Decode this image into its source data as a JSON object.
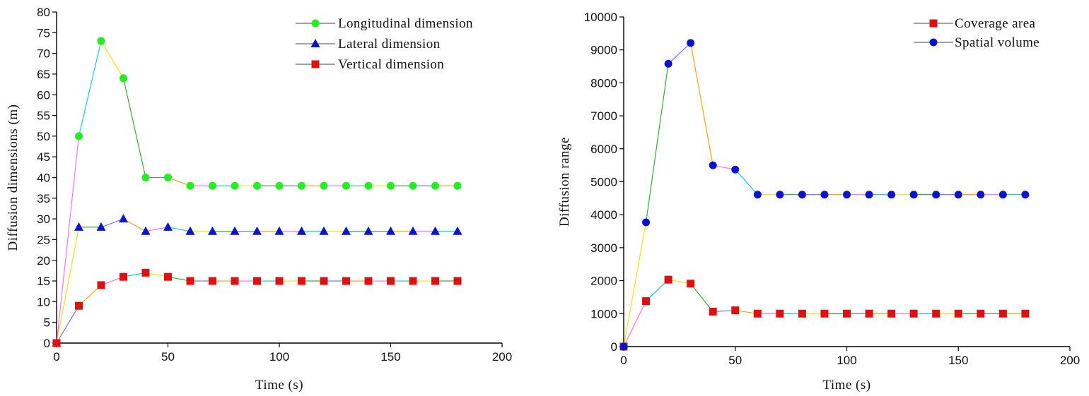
{
  "chart_data": [
    {
      "type": "line",
      "x": [
        0,
        10,
        20,
        30,
        40,
        50,
        60,
        70,
        80,
        90,
        100,
        110,
        120,
        130,
        140,
        150,
        160,
        170,
        180
      ],
      "series": [
        {
          "name": "Longitudinal dimension",
          "marker": "circle",
          "color": "#22ee22",
          "values": [
            0,
            50,
            73,
            64,
            40,
            40,
            38,
            38,
            38,
            38,
            38,
            38,
            38,
            38,
            38,
            38,
            38,
            38,
            38
          ]
        },
        {
          "name": "Lateral dimension",
          "marker": "triangle",
          "color": "#0a14d0",
          "values": [
            0,
            28,
            28,
            30,
            27,
            28,
            27,
            27,
            27,
            27,
            27,
            27,
            27,
            27,
            27,
            27,
            27,
            27,
            27
          ]
        },
        {
          "name": "Vertical dimension",
          "marker": "square",
          "color": "#e01010",
          "values": [
            0,
            9,
            14,
            16,
            17,
            16,
            15,
            15,
            15,
            15,
            15,
            15,
            15,
            15,
            15,
            15,
            15,
            15,
            15
          ]
        }
      ],
      "xlabel": "Time (s)",
      "ylabel": "Diffusion dimensions (m)",
      "xlim": [
        0,
        200
      ],
      "ylim": [
        0,
        80
      ],
      "xticks": [
        0,
        50,
        100,
        150,
        200
      ],
      "yticks": [
        0,
        5,
        10,
        15,
        20,
        25,
        30,
        35,
        40,
        45,
        50,
        55,
        60,
        65,
        70,
        75,
        80
      ],
      "grid": false,
      "legend": "top-right"
    },
    {
      "type": "line",
      "x": [
        0,
        10,
        20,
        30,
        40,
        50,
        60,
        70,
        80,
        90,
        100,
        110,
        120,
        130,
        140,
        150,
        160,
        170,
        180
      ],
      "series": [
        {
          "name": "Coverage area",
          "marker": "square",
          "color": "#e01010",
          "values": [
            0,
            1380,
            2030,
            1910,
            1060,
            1100,
            1000,
            1000,
            1000,
            1000,
            1000,
            1000,
            1000,
            1000,
            1000,
            1000,
            1000,
            1000,
            1000
          ]
        },
        {
          "name": "Spatial volume",
          "marker": "circle",
          "color": "#0a14d0",
          "values": [
            0,
            3770,
            8580,
            9210,
            5500,
            5370,
            4610,
            4610,
            4610,
            4610,
            4610,
            4610,
            4610,
            4610,
            4610,
            4610,
            4610,
            4610,
            4610
          ]
        }
      ],
      "xlabel": "Time (s)",
      "ylabel": "Diffusion range",
      "xlim": [
        0,
        200
      ],
      "ylim": [
        0,
        10000
      ],
      "xticks": [
        0,
        50,
        100,
        150,
        200
      ],
      "yticks": [
        0,
        1000,
        2000,
        3000,
        4000,
        5000,
        6000,
        7000,
        8000,
        9000,
        10000
      ],
      "grid": false,
      "legend": "top-right"
    }
  ],
  "segment_colors": [
    "#ff66ff",
    "#00cccc",
    "#e6e600",
    "#22aa22",
    "#6666ff",
    "#ff9900"
  ]
}
